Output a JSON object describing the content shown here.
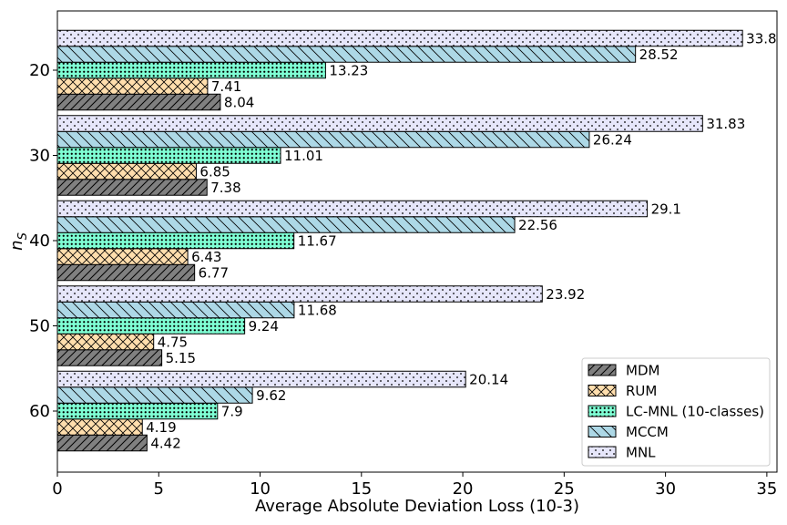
{
  "chart_data": {
    "type": "bar",
    "orientation": "horizontal",
    "categories": [
      "20",
      "30",
      "40",
      "50",
      "60"
    ],
    "series": [
      {
        "name": "MDM",
        "values": [
          8.04,
          7.38,
          6.77,
          5.15,
          4.42
        ],
        "color": "#808080",
        "hatch": "diagonal"
      },
      {
        "name": "RUM",
        "values": [
          7.41,
          6.85,
          6.43,
          4.75,
          4.19
        ],
        "color": "#ffdead",
        "hatch": "cross"
      },
      {
        "name": "LC-MNL (10-classes)",
        "values": [
          13.23,
          11.01,
          11.67,
          9.24,
          7.9
        ],
        "color": "#7fffd4",
        "hatch": "dots-dense"
      },
      {
        "name": "MCCM",
        "values": [
          28.52,
          26.24,
          22.56,
          11.68,
          9.62
        ],
        "color": "#add8e6",
        "hatch": "backslash"
      },
      {
        "name": "MNL",
        "values": [
          33.8,
          31.83,
          29.1,
          23.92,
          20.14
        ],
        "color": "#e6e6fa",
        "hatch": "dots-sparse"
      }
    ],
    "data_labels": {
      "MDM": [
        "8.04",
        "7.38",
        "6.77",
        "5.15",
        "4.42"
      ],
      "RUM": [
        "7.41",
        "6.85",
        "6.43",
        "4.75",
        "4.19"
      ],
      "LC-MNL (10-classes)": [
        "13.23",
        "11.01",
        "11.67",
        "9.24",
        "7.9"
      ],
      "MCCM": [
        "28.52",
        "26.24",
        "22.56",
        "11.68",
        "9.62"
      ],
      "MNL": [
        "33.8",
        "31.83",
        "29.1",
        "23.92",
        "20.14"
      ]
    },
    "xlabel": "Average Absolute Deviation Loss (10-3)",
    "ylabel": "n_S",
    "xlim": [
      0,
      35.5
    ],
    "xticks": [
      0,
      5,
      10,
      15,
      20,
      25,
      30,
      35
    ],
    "grid": false,
    "legend_position": "bottom-right"
  }
}
